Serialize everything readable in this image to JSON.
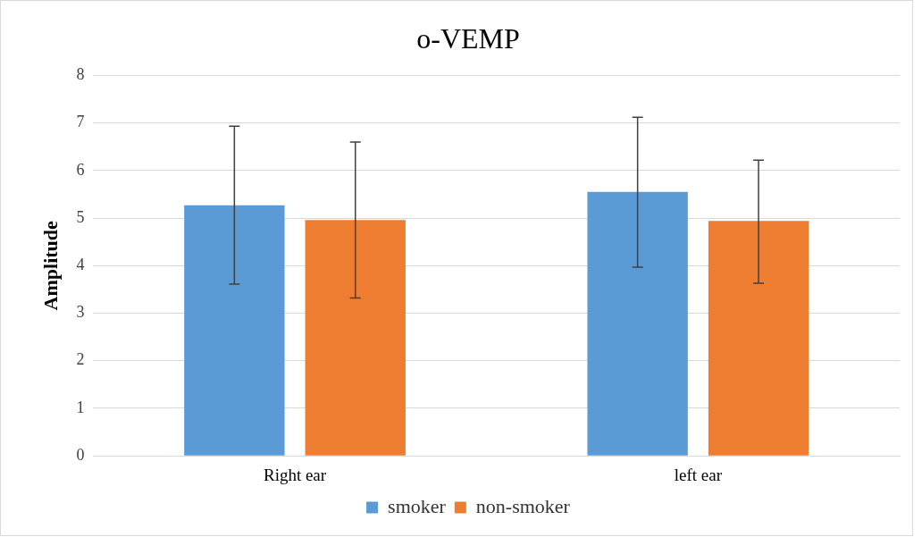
{
  "chart_data": {
    "type": "bar",
    "title": "o-VEMP",
    "ylabel": "Amplitude",
    "categories": [
      "Right ear",
      "left ear"
    ],
    "series": [
      {
        "name": "smoker",
        "color": "#5b9bd5",
        "values": [
          5.27,
          5.55
        ],
        "errors": [
          [
            3.61,
            6.93
          ],
          [
            3.97,
            7.12
          ]
        ]
      },
      {
        "name": "non-smoker",
        "color": "#ed7d31",
        "values": [
          4.96,
          4.94
        ],
        "errors": [
          [
            3.32,
            6.6
          ],
          [
            3.63,
            6.22
          ]
        ]
      }
    ],
    "ylim": [
      0,
      8
    ],
    "yticks": [
      0,
      1,
      2,
      3,
      4,
      5,
      6,
      7,
      8
    ],
    "grid": "y",
    "legend": "bottom"
  }
}
